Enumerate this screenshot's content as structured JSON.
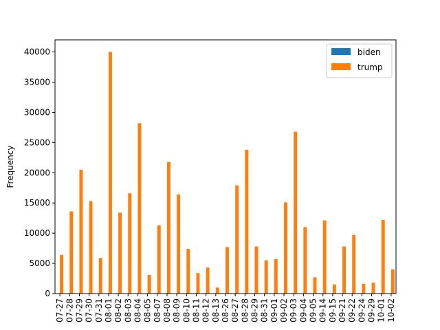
{
  "chart_data": {
    "type": "bar",
    "title": "",
    "xlabel": "",
    "ylabel": "Frequency",
    "ylim": [
      0,
      42000
    ],
    "yticks": [
      0,
      5000,
      10000,
      15000,
      20000,
      25000,
      30000,
      35000,
      40000
    ],
    "grid": false,
    "legend_position": "top-right",
    "categories": [
      "07-27",
      "07-28",
      "07-29",
      "07-30",
      "07-31",
      "08-01",
      "08-02",
      "08-03",
      "08-04",
      "08-05",
      "08-07",
      "08-08",
      "08-09",
      "08-10",
      "08-11",
      "08-12",
      "08-13",
      "08-26",
      "08-27",
      "08-28",
      "08-29",
      "08-31",
      "09-01",
      "09-02",
      "09-03",
      "09-04",
      "09-05",
      "09-14",
      "09-15",
      "09-21",
      "09-22",
      "09-24",
      "09-29",
      "10-01",
      "10-02"
    ],
    "series": [
      {
        "name": "biden",
        "color": "#1f77b4",
        "values": [
          0,
          0,
          0,
          0,
          0,
          0,
          0,
          0,
          0,
          0,
          0,
          0,
          0,
          0,
          0,
          0,
          0,
          0,
          0,
          0,
          0,
          0,
          0,
          0,
          0,
          0,
          0,
          0,
          0,
          0,
          0,
          0,
          0,
          0,
          0
        ]
      },
      {
        "name": "trump",
        "color": "#ff7f0e",
        "values": [
          6400,
          13600,
          20500,
          15300,
          5900,
          40000,
          13400,
          16600,
          28200,
          3100,
          11300,
          21800,
          16400,
          7400,
          3400,
          4300,
          1000,
          7700,
          17900,
          23800,
          7800,
          5500,
          5700,
          15100,
          26800,
          11000,
          2700,
          12100,
          1500,
          7800,
          9700,
          1600,
          1800,
          12200,
          4000
        ]
      }
    ]
  }
}
